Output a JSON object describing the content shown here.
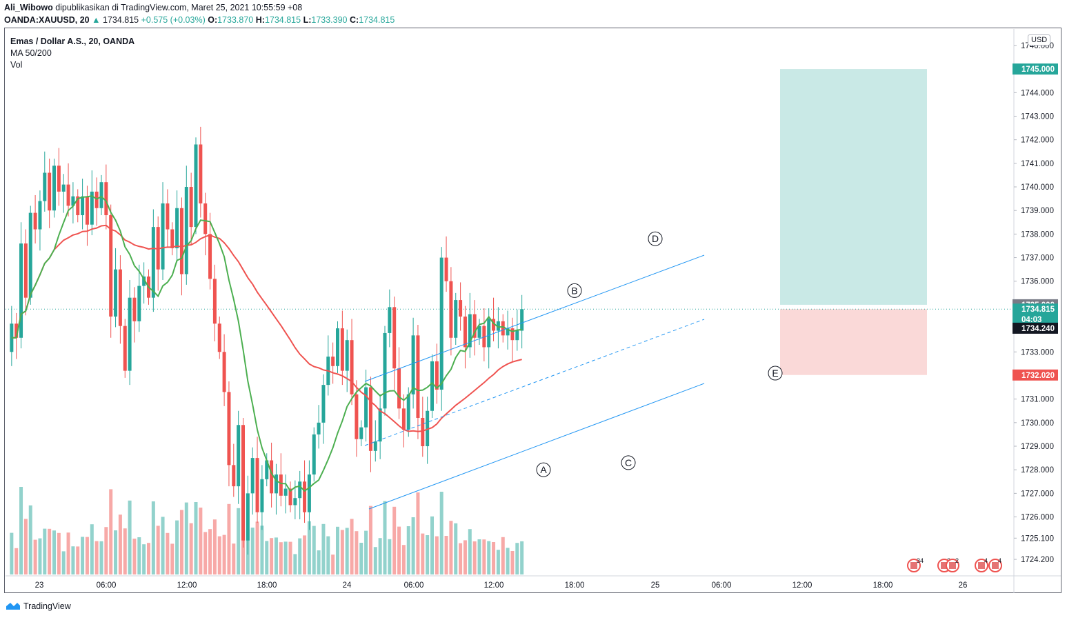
{
  "header": {
    "author": "Ali_Wibowo",
    "published": "dipublikasikan di TradingView.com, Maret 25, 2021 10:55:59 +08",
    "symbol": "OANDA:XAUUSD, 20",
    "last": "1734.815",
    "change": "+0.575 (+0.03%)",
    "o_label": "O:",
    "o_val": "1733.870",
    "h_label": "H:",
    "h_val": "1734.815",
    "l_label": "L:",
    "l_val": "1733.390",
    "c_label": "C:",
    "c_val": "1734.815"
  },
  "legend": {
    "title": "Emas / Dollar A.S., 20, OANDA",
    "ma": "MA 50/200",
    "vol": "Vol"
  },
  "currency": "USD",
  "footer": {
    "brand": "TradingView"
  },
  "colors": {
    "up": "#26a69a",
    "down": "#ef5350",
    "ma_fast": "#4caf50",
    "ma_slow": "#ef5350",
    "channel": "#2196f3",
    "target": "#b2dfdb",
    "stop": "#f8c9c7"
  },
  "chart_data": {
    "type": "candlestick",
    "y_ticks": [
      "1724.200",
      "1725.100",
      "1726.000",
      "1727.000",
      "1728.000",
      "1729.000",
      "1730.000",
      "1731.000",
      "1732.000",
      "1733.000",
      "1734.000",
      "1735.000",
      "1736.000",
      "1737.000",
      "1738.000",
      "1739.000",
      "1740.000",
      "1741.000",
      "1742.000",
      "1743.000",
      "1744.000",
      "1745.000",
      "1746.000"
    ],
    "x_ticks": [
      "23",
      "06:00",
      "12:00",
      "18:00",
      "24",
      "06:00",
      "12:00",
      "18:00",
      "25",
      "06:00",
      "12:00",
      "18:00",
      "26"
    ],
    "ylim": [
      1723.5,
      1746.7
    ],
    "price_labels": [
      {
        "text": "1745.000",
        "value": 1745.0,
        "kind": "target"
      },
      {
        "text": "1735.000",
        "value": 1735.0,
        "kind": "entry"
      },
      {
        "text": "1734.815",
        "value": 1734.815,
        "kind": "last"
      },
      {
        "text": "04:03",
        "value": 1734.8,
        "kind": "countdown"
      },
      {
        "text": "1734.240",
        "value": 1734.24,
        "kind": "ref"
      },
      {
        "text": "1732.020",
        "value": 1732.02,
        "kind": "stop"
      }
    ],
    "wave_labels": [
      {
        "text": "A",
        "price": 1728.0
      },
      {
        "text": "B",
        "price": 1735.6
      },
      {
        "text": "C",
        "price": 1728.3
      },
      {
        "text": "D",
        "price": 1737.8
      },
      {
        "text": "E",
        "price": 1732.1
      }
    ],
    "position": {
      "entry": 1735.0,
      "target": 1745.0,
      "stop": 1732.02
    },
    "ohlc_path": [
      1733.0,
      1734.2,
      1733.6,
      1737.6,
      1735.3,
      1738.9,
      1738.2,
      1739.4,
      1740.6,
      1739.0,
      1740.9,
      1739.8,
      1740.1,
      1739.2,
      1739.6,
      1738.8,
      1739.6,
      1738.4,
      1739.8,
      1739.1,
      1740.2,
      1738.8,
      1734.5,
      1736.5,
      1734.1,
      1732.2,
      1735.3,
      1734.3,
      1735.8,
      1736.2,
      1735.3,
      1738.3,
      1736.5,
      1739.3,
      1738.2,
      1737.4,
      1739.1,
      1736.3,
      1740.0,
      1738.3,
      1741.8,
      1739.3,
      1738.0,
      1736.1,
      1734.2,
      1733.0,
      1731.3,
      1728.2,
      1727.3,
      1729.9,
      1725.0,
      1727.0,
      1728.5,
      1726.2,
      1727.6,
      1728.4,
      1727.0,
      1727.8,
      1726.9,
      1727.2,
      1726.5,
      1726.8,
      1727.5,
      1726.2,
      1727.8,
      1729.5,
      1730.0,
      1731.6,
      1732.8,
      1732.4,
      1734.0,
      1732.2,
      1733.5,
      1731.2,
      1729.3,
      1729.8,
      1731.5,
      1728.8,
      1729.2,
      1730.6,
      1733.8,
      1734.9,
      1732.3,
      1730.6,
      1729.7,
      1731.2,
      1733.7,
      1730.2,
      1729.0,
      1730.5,
      1732.6,
      1731.4,
      1737.0,
      1736.0,
      1733.6,
      1735.2,
      1734.5,
      1733.2,
      1734.6,
      1733.6,
      1734.1,
      1733.2,
      1734.4,
      1733.9,
      1734.3,
      1733.7,
      1734.0,
      1733.5,
      1733.9,
      1734.815
    ]
  }
}
